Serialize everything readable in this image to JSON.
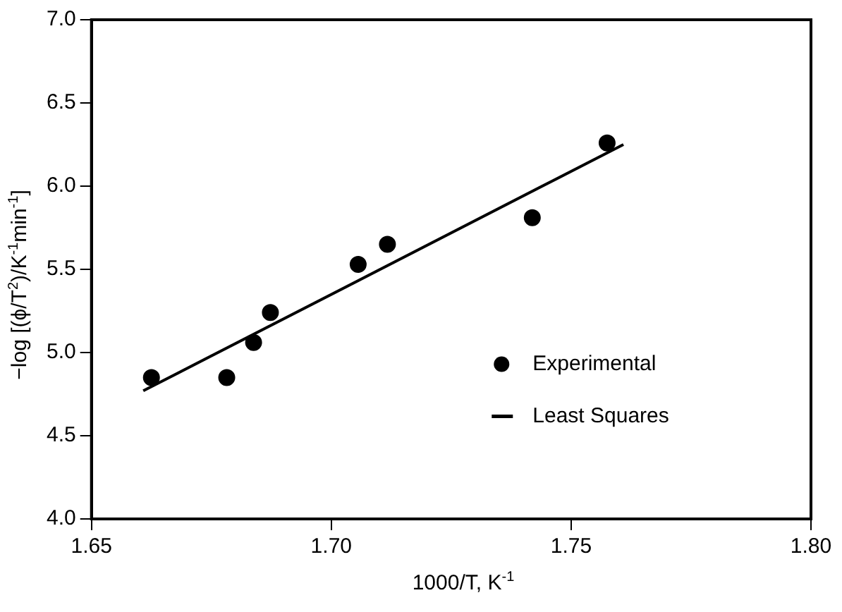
{
  "chart_data": {
    "type": "scatter",
    "xlabel": "1000/T, K$^{-1}$",
    "ylabel": "−log [(ϕ/T$^{2}$)/K$^{-1}$min$^{-1}$]",
    "xlim": [
      1.65,
      1.8
    ],
    "xticks": [
      1.65,
      {
        "value": 1.7,
        "label": "1.70"
      },
      1.75,
      {
        "value": 1.8,
        "label": "1.80"
      }
    ],
    "ylim": [
      4.0,
      7.0
    ],
    "yticks": [
      {
        "value": 4,
        "label": "4.0"
      },
      4.5,
      {
        "value": 5,
        "label": "5.0"
      },
      5.5,
      {
        "value": 6,
        "label": "6.0"
      },
      6.5,
      {
        "value": 7,
        "label": "7.0"
      }
    ],
    "grid": false,
    "legend": "bottom right",
    "marker": "circle",
    "series": [
      {
        "name": "Experimental",
        "color": "#000000",
        "x": [
          1.6625,
          1.6782,
          1.6838,
          1.6873,
          1.7056,
          1.7117,
          1.7419,
          1.7575
        ],
        "values": [
          4.85,
          4.85,
          5.06,
          5.24,
          5.53,
          5.65,
          5.81,
          6.26
        ]
      },
      {
        "name": "Least Squares",
        "type": "line",
        "color": "#000000",
        "marker": "none",
        "line_style": "solid",
        "x": [
          1.6608,
          1.7609
        ],
        "values": [
          4.77,
          6.25
        ]
      }
    ]
  }
}
